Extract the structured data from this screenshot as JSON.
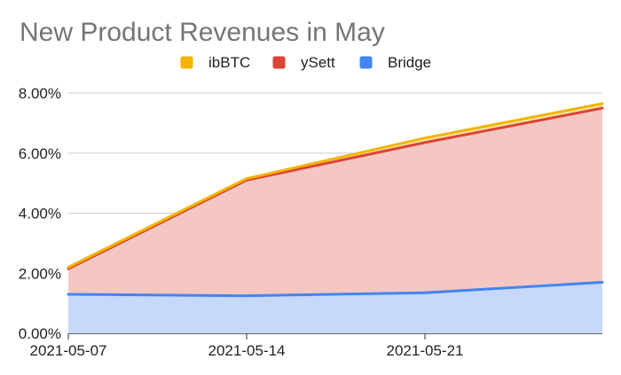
{
  "chart_data": {
    "type": "area",
    "title": "New Product Revenues in May",
    "xlabel": "",
    "ylabel": "",
    "stacked": true,
    "categories": [
      "2021-05-07",
      "2021-05-14",
      "2021-05-21",
      "2021-05-28"
    ],
    "visible_x_ticks": [
      "2021-05-07",
      "2021-05-14",
      "2021-05-21"
    ],
    "ylim": [
      0,
      8
    ],
    "y_ticks": [
      0,
      2,
      4,
      6,
      8
    ],
    "y_tick_labels": [
      "0.00%",
      "2.00%",
      "4.00%",
      "6.00%",
      "8.00%"
    ],
    "legend_position": "top",
    "series": [
      {
        "name": "Bridge",
        "color": "#4285f4",
        "values": [
          1.3,
          1.25,
          1.35,
          1.7
        ]
      },
      {
        "name": "ySett",
        "color": "#db4437",
        "values": [
          0.85,
          3.85,
          5.0,
          5.8
        ]
      },
      {
        "name": "ibBTC",
        "color": "#f4b400",
        "values": [
          0.05,
          0.05,
          0.15,
          0.15
        ]
      }
    ],
    "legend_order": [
      "ibBTC",
      "ySett",
      "Bridge"
    ],
    "grid": true
  }
}
